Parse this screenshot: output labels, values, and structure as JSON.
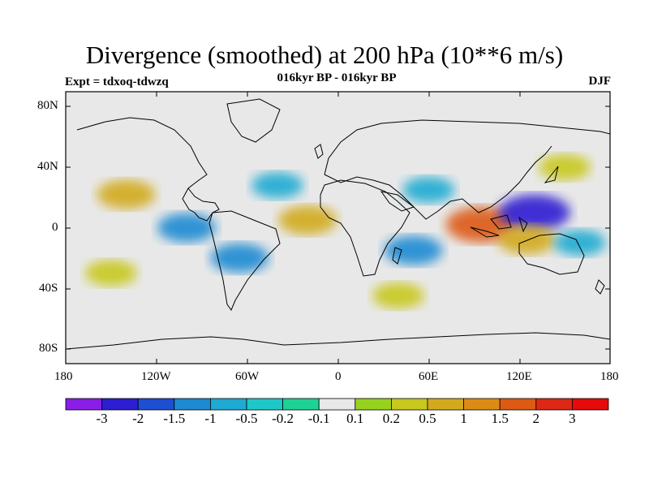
{
  "title": "Divergence (smoothed) at 200 hPa (10**6 m/s)",
  "subtitle": "016kyr BP - 016kyr BP",
  "experiment": "Expt = tdxoq-tdwzq",
  "season": "DJF",
  "map": {
    "background_color": "#e8e8e8",
    "lat_labels": [
      "80N",
      "40N",
      "0",
      "40S",
      "80S"
    ],
    "lon_labels": [
      "180",
      "120W",
      "60W",
      "0",
      "60E",
      "120E",
      "180"
    ]
  },
  "colorbar": {
    "labels": [
      "-3",
      "-2",
      "-1.5",
      "-1",
      "-0.5",
      "-0.2",
      "-0.1",
      "0.1",
      "0.2",
      "0.5",
      "1",
      "1.5",
      "2",
      "3"
    ],
    "colors": [
      "#8a1ee6",
      "#2d1ed2",
      "#1e4ed2",
      "#1e8ad2",
      "#1eaad2",
      "#1ec8c8",
      "#1ed296",
      "#e8e8e8",
      "#96d21e",
      "#c8c81e",
      "#d2aa1e",
      "#dc8c14",
      "#dc5a14",
      "#dc2814",
      "#e60a0a"
    ]
  },
  "chart_data": {
    "type": "heatmap",
    "title": "Divergence (smoothed) at 200 hPa (10**6 m/s)",
    "subtitle": "016kyr BP - 016kyr BP",
    "xlabel": "",
    "ylabel": "",
    "xlim": [
      -180,
      180
    ],
    "ylim": [
      -90,
      90
    ],
    "levels": [
      -3,
      -2,
      -1.5,
      -1,
      -0.5,
      -0.2,
      -0.1,
      0.1,
      0.2,
      0.5,
      1,
      1.5,
      2,
      3
    ],
    "features": [
      {
        "lon": 95,
        "lat": 2,
        "value": 2.0
      },
      {
        "lon": 130,
        "lat": 10,
        "value": -2.0
      },
      {
        "lon": 125,
        "lat": -8,
        "value": 1.0
      },
      {
        "lon": -140,
        "lat": 22,
        "value": 1.0
      },
      {
        "lon": -100,
        "lat": 0,
        "value": -1.0
      },
      {
        "lon": -65,
        "lat": -20,
        "value": -1.0
      },
      {
        "lon": -20,
        "lat": 5,
        "value": 1.0
      },
      {
        "lon": 50,
        "lat": -15,
        "value": -1.0
      },
      {
        "lon": 60,
        "lat": 25,
        "value": -0.5
      },
      {
        "lon": -40,
        "lat": 28,
        "value": -0.5
      },
      {
        "lon": 160,
        "lat": -10,
        "value": -0.5
      },
      {
        "lon": 40,
        "lat": -45,
        "value": 0.5
      },
      {
        "lon": -150,
        "lat": -30,
        "value": 0.5
      },
      {
        "lon": 150,
        "lat": 40,
        "value": 0.5
      }
    ]
  }
}
